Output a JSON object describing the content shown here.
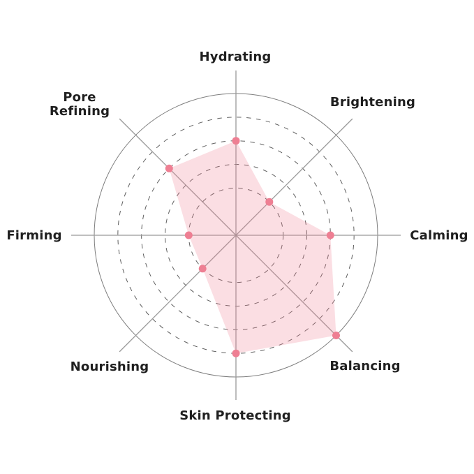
{
  "page": {
    "background": "#ffffff"
  },
  "chart_data": {
    "type": "radar",
    "categories": [
      "Hydrating",
      "Brightening",
      "Calming",
      "Balancing",
      "Skin Protecting",
      "Nourishing",
      "Firming",
      "Pore Refining"
    ],
    "values": [
      4,
      2,
      4,
      6,
      5,
      2,
      2,
      4
    ],
    "scale": {
      "min": 0,
      "max": 6,
      "grid_rings": [
        2,
        3,
        4,
        5,
        6
      ],
      "inner_rings_style": "dashed",
      "outer_ring_style": "solid"
    },
    "layout_hints": {
      "axes_count": 8,
      "start": "top",
      "direction": "clockwise",
      "angle_step_deg": 45,
      "grid": "circular",
      "legend": "none",
      "title": ""
    },
    "colors": {
      "fill": "rgba(238,127,147,0.26)",
      "point": "#ee7f93",
      "spoke": "#999999",
      "ring_dashed": "#5f5f5f",
      "ring_solid": "#7d7d7d",
      "label": "#1f1f1f",
      "background": "#ffffff"
    }
  }
}
